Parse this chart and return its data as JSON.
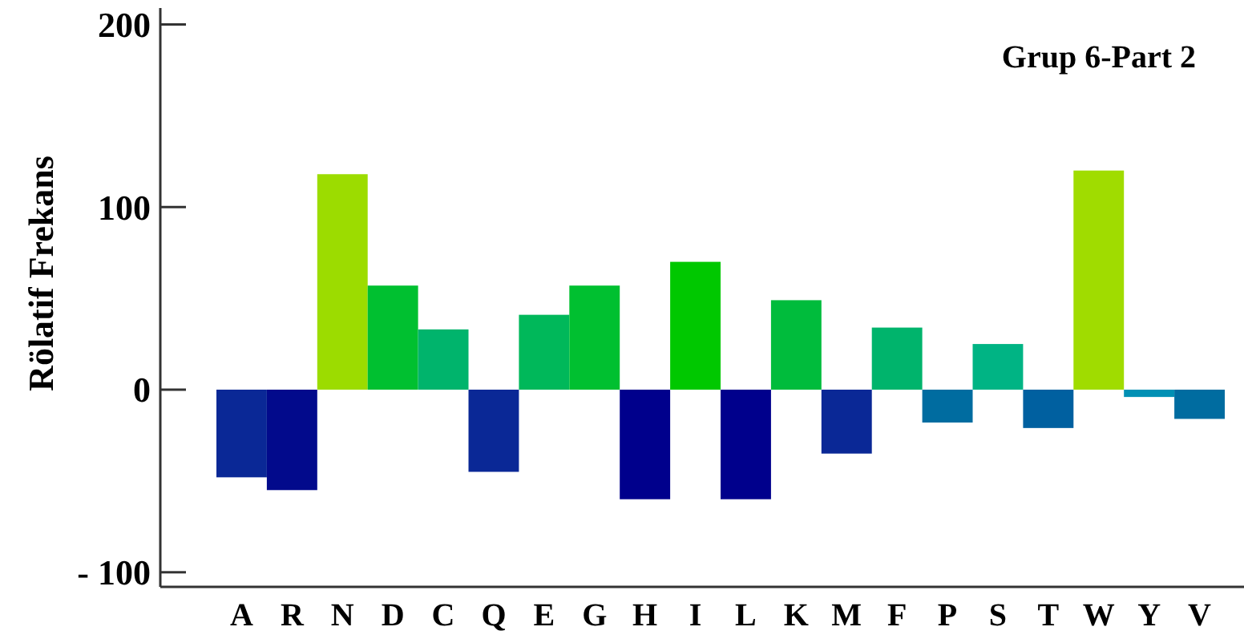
{
  "chart_data": {
    "type": "bar",
    "title": "Grup 6-Part 2",
    "ylabel": "Rölatif Frekans",
    "categories": [
      "A",
      "R",
      "N",
      "D",
      "C",
      "Q",
      "E",
      "G",
      "H",
      "I",
      "L",
      "K",
      "M",
      "F",
      "P",
      "S",
      "T",
      "W",
      "Y",
      "V"
    ],
    "values": [
      -48,
      -55,
      118,
      57,
      33,
      -45,
      41,
      57,
      -60,
      70,
      -60,
      49,
      -35,
      34,
      -18,
      25,
      -21,
      120,
      -4,
      -16
    ],
    "colors": [
      "#0a2896",
      "#020a8c",
      "#9cdc00",
      "#00c030",
      "#00b46c",
      "#0a2896",
      "#00b85a",
      "#00c030",
      "#00008c",
      "#00c800",
      "#00008c",
      "#00bc3c",
      "#0a2896",
      "#00b46c",
      "#006ca0",
      "#00b484",
      "#0060a0",
      "#a0dc00",
      "#0090b4",
      "#006ca0"
    ],
    "ylim": [
      -108,
      209
    ],
    "yticks": [
      200,
      100,
      0,
      {
        "value": -100,
        "label": "- 100"
      }
    ],
    "grid": false
  }
}
